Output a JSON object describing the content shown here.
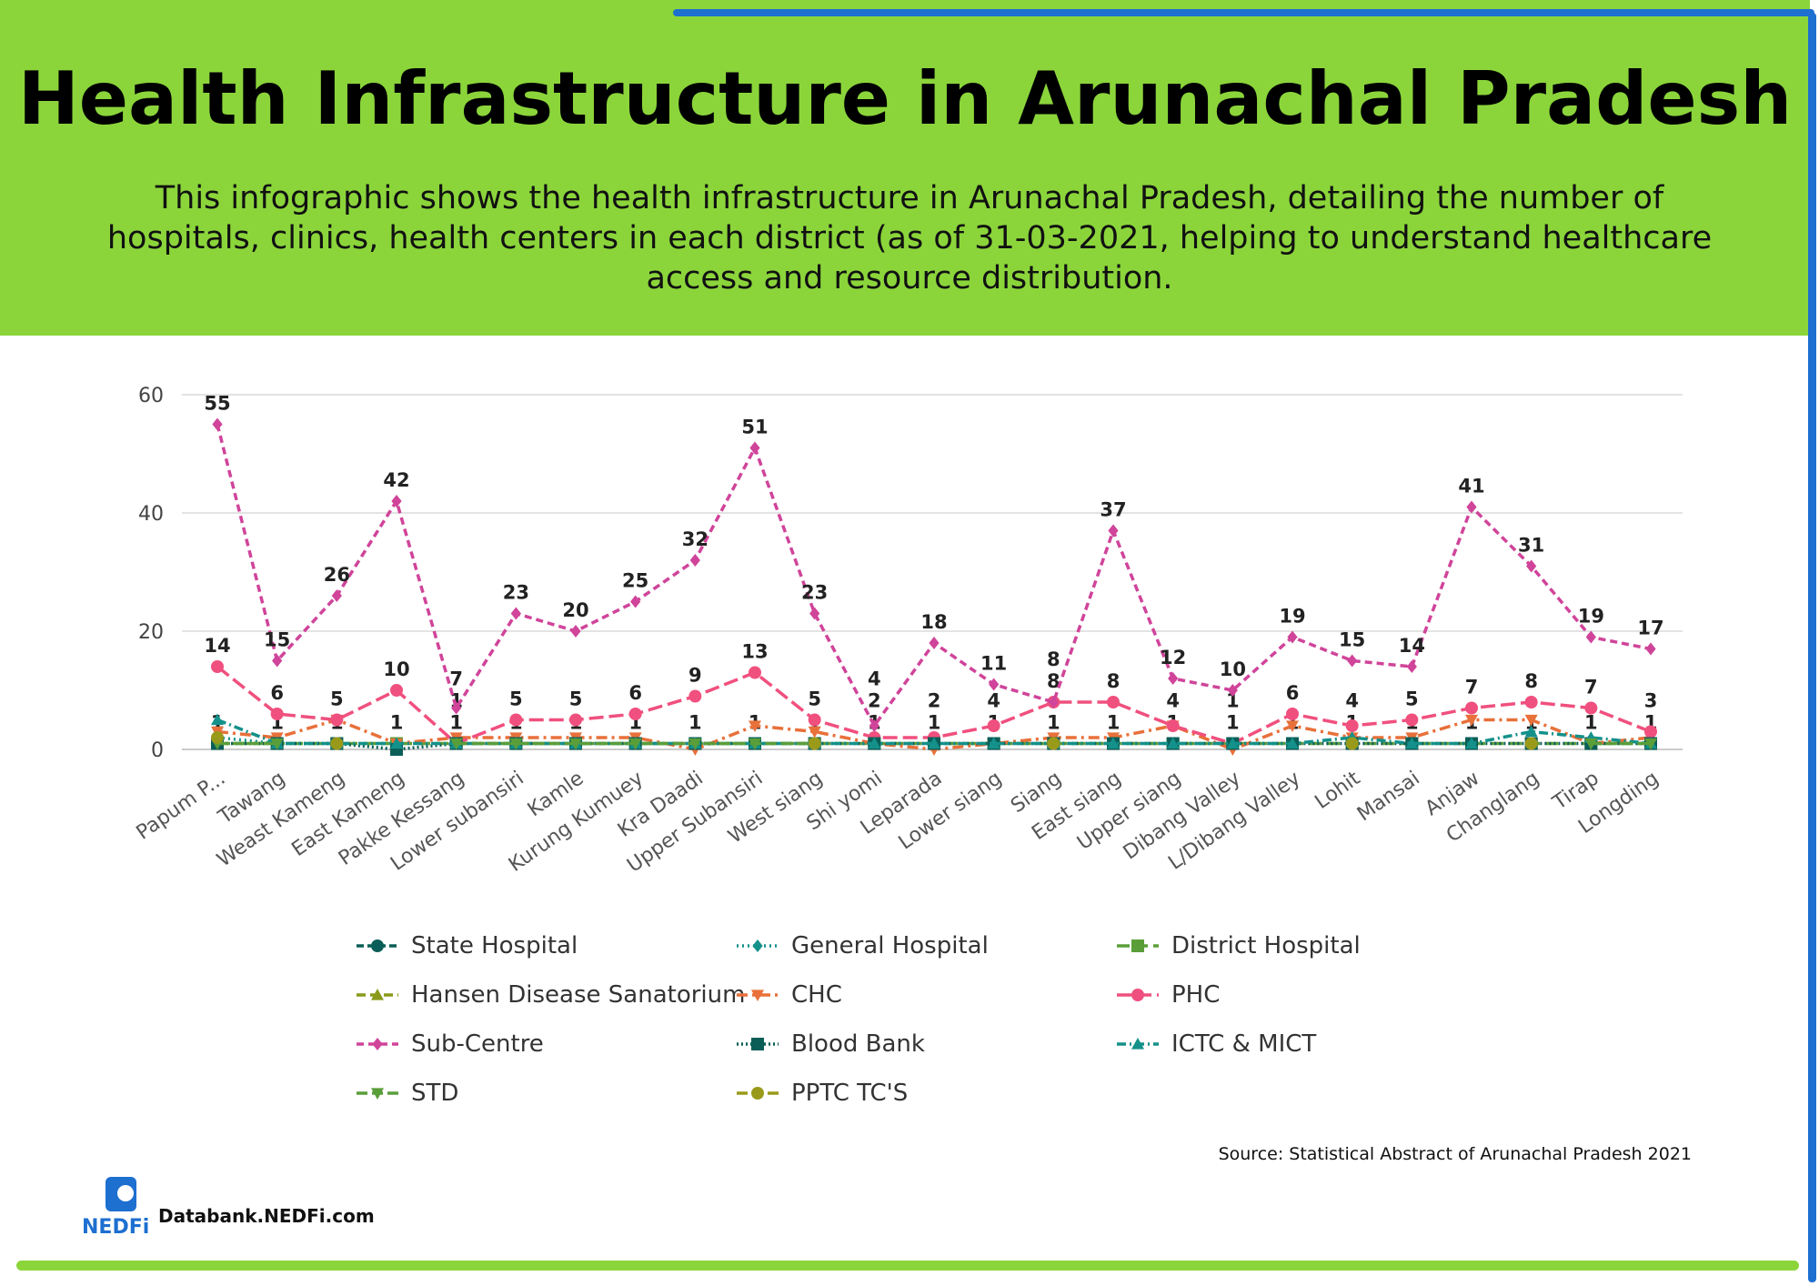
{
  "header": {
    "title": "Health Infrastructure in Arunachal Pradesh",
    "subtitle": "This infographic shows the health infrastructure in Arunachal Pradesh, detailing the number of hospitals, clinics, health centers in each district (as of  31-03-2021, helping to understand healthcare access and resource distribution."
  },
  "colors": {
    "header_bg": "#8bd53b",
    "accent_line": "#1d6fd0"
  },
  "chart_data": {
    "type": "line",
    "ylim": [
      0,
      60
    ],
    "yticks": [
      0,
      20,
      40,
      60
    ],
    "grid": true,
    "legend_position": "bottom",
    "categories": [
      "Papum P...",
      "Tawang",
      "Weast Kameng",
      "East Kameng",
      "Pakke Kessang",
      "Lower subansiri",
      "Kamle",
      "Kurung Kumuey",
      "Kra Daadi",
      "Upper Subansiri",
      "West siang",
      "Shi yomi",
      "Leparada",
      "Lower siang",
      "Siang",
      "East siang",
      "Upper siang",
      "Dibang Valley",
      "L/Dibang Valley",
      "Lohit",
      "Mansai",
      "Anjaw",
      "Changlang",
      "Tirap",
      "Longding"
    ],
    "series": [
      {
        "name": "State Hospital",
        "color": "#0b5e57",
        "marker": "circle",
        "dash": "8,4",
        "labels": false,
        "values": [
          1,
          null,
          null,
          null,
          null,
          null,
          null,
          null,
          null,
          null,
          null,
          null,
          null,
          null,
          null,
          null,
          null,
          null,
          null,
          null,
          null,
          null,
          null,
          null,
          null
        ]
      },
      {
        "name": "General Hospital",
        "color": "#13918a",
        "marker": "diamond",
        "dash": "2,4",
        "labels": false,
        "values": [
          2,
          1,
          1,
          1,
          null,
          null,
          null,
          null,
          null,
          null,
          null,
          null,
          null,
          null,
          null,
          null,
          null,
          null,
          null,
          null,
          null,
          null,
          null,
          null,
          null
        ]
      },
      {
        "name": "District Hospital",
        "color": "#5a9e3a",
        "marker": "square",
        "dash": "14,6",
        "labels": true,
        "values": [
          1,
          1,
          1,
          1,
          1,
          1,
          1,
          1,
          1,
          1,
          1,
          1,
          1,
          1,
          1,
          1,
          1,
          1,
          1,
          1,
          1,
          1,
          1,
          1,
          1
        ]
      },
      {
        "name": "Hansen Disease Sanatorium",
        "color": "#8a9a1a",
        "marker": "triangle",
        "dash": "10,5",
        "labels": false,
        "values": [
          null,
          null,
          null,
          null,
          null,
          null,
          null,
          null,
          null,
          null,
          null,
          null,
          null,
          null,
          null,
          null,
          null,
          null,
          null,
          null,
          null,
          null,
          null,
          null,
          null
        ]
      },
      {
        "name": "CHC",
        "color": "#e8703a",
        "marker": "triangle-down",
        "dash": "12,5,3,5",
        "labels": false,
        "values": [
          3,
          2,
          5,
          1,
          2,
          2,
          2,
          2,
          0,
          4,
          3,
          1,
          0,
          1,
          2,
          2,
          4,
          0,
          4,
          2,
          2,
          5,
          5,
          1,
          2
        ]
      },
      {
        "name": "PHC",
        "color": "#f0507e",
        "marker": "circle",
        "dash": "16,6",
        "labels": true,
        "values": [
          14,
          6,
          5,
          10,
          1,
          5,
          5,
          6,
          9,
          13,
          5,
          2,
          2,
          4,
          8,
          8,
          4,
          1,
          6,
          4,
          5,
          7,
          8,
          7,
          3
        ]
      },
      {
        "name": "Sub-Centre",
        "color": "#d0449a",
        "marker": "diamond",
        "dash": "8,5",
        "labels": true,
        "values": [
          55,
          15,
          26,
          42,
          7,
          23,
          20,
          25,
          32,
          51,
          23,
          4,
          18,
          11,
          8,
          37,
          12,
          10,
          19,
          15,
          14,
          41,
          31,
          19,
          17
        ]
      },
      {
        "name": "Blood Bank",
        "color": "#0b5e57",
        "marker": "square",
        "dash": "2,3",
        "labels": false,
        "values": [
          1,
          1,
          1,
          0,
          1,
          1,
          1,
          1,
          1,
          1,
          1,
          1,
          1,
          1,
          1,
          1,
          1,
          1,
          1,
          1,
          1,
          1,
          1,
          1,
          1
        ]
      },
      {
        "name": "ICTC & MICT",
        "color": "#13918a",
        "marker": "triangle",
        "dash": "10,4,2,4",
        "labels": false,
        "values": [
          5,
          1,
          1,
          1,
          1,
          1,
          1,
          1,
          1,
          1,
          1,
          1,
          1,
          1,
          1,
          1,
          1,
          1,
          1,
          2,
          1,
          1,
          3,
          2,
          1
        ]
      },
      {
        "name": "STD",
        "color": "#5a9e3a",
        "marker": "triangle-down",
        "dash": "12,5",
        "labels": false,
        "values": [
          1,
          1,
          null,
          null,
          1,
          1,
          1,
          1,
          1,
          1,
          1,
          null,
          null,
          null,
          null,
          null,
          null,
          null,
          null,
          null,
          null,
          null,
          null,
          1,
          1
        ]
      },
      {
        "name": "PPTC TC'S",
        "color": "#9a9a1a",
        "marker": "circle",
        "dash": "12,5",
        "labels": false,
        "values": [
          2,
          null,
          1,
          null,
          null,
          null,
          null,
          null,
          null,
          null,
          1,
          null,
          null,
          null,
          1,
          null,
          null,
          null,
          null,
          1,
          null,
          null,
          1,
          null,
          null
        ]
      }
    ]
  },
  "footer": {
    "source": "Source: Statistical Abstract of Arunachal Pradesh 2021",
    "brand": "Databank.NEDFi.com",
    "logo_text": "NEDFi"
  }
}
